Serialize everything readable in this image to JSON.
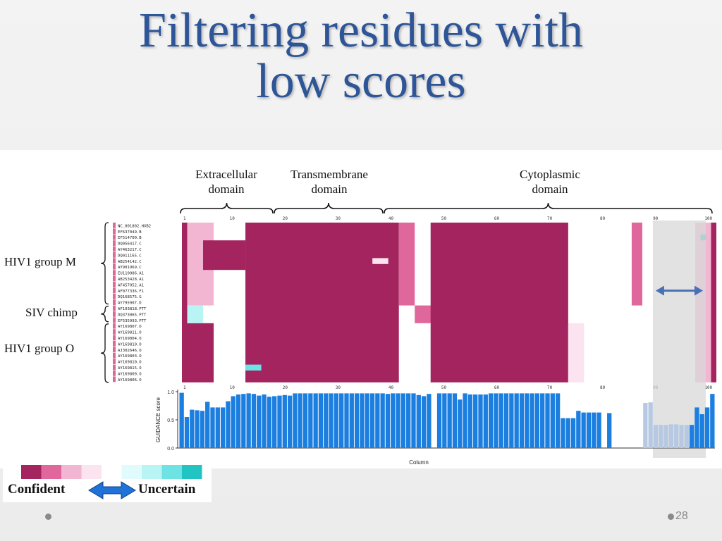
{
  "slide": {
    "title_line1": "Filtering residues with",
    "title_line2": "low scores",
    "page_number": "28"
  },
  "domains": [
    {
      "line1": "Extracellular",
      "line2": "domain"
    },
    {
      "line1": "Transmembrane",
      "line2": "domain"
    },
    {
      "line1": "Cytoplasmic",
      "line2": "domain"
    }
  ],
  "groups": [
    "HIV1 group M",
    "SIV chimp",
    "HIV1 group O"
  ],
  "sequences": [
    "NC_001802.HXB2",
    "EF637049.B",
    "EF514700.B",
    "DQ056417.C",
    "AY463217.C",
    "DQ011165.C",
    "AB254142.C",
    "AY901969.C",
    "EU110086.A1",
    "AB253428.A1",
    "AF457052.A1",
    "AF077336.F1",
    "DQ168575.G",
    "AY795907.D",
    "AF103818.PTT",
    "DQ373065.PTT",
    "EF535993.PTT",
    "AY169807.O",
    "AY169811.O",
    "AY169804.O",
    "AY169810.O",
    "AJ302646.O",
    "AY169803.O",
    "AY169810.O",
    "AY169815.O",
    "AY169809.O",
    "AY169806.O"
  ],
  "alignment_ticks": [
    "1",
    "10",
    "20",
    "30",
    "40",
    "50",
    "60",
    "70",
    "80",
    "90",
    "100"
  ],
  "legend": {
    "confident": "Confident",
    "uncertain": "Uncertain",
    "colors": [
      "#a3245e",
      "#e0679b",
      "#f3b6d2",
      "#fbe3ef",
      "#ffffff",
      "#e0fbfb",
      "#b8f4f4",
      "#6ee3e3",
      "#22c3c3"
    ]
  },
  "chart_data": {
    "type": "bar",
    "ylabel": "GUIDANCE score",
    "xlabel": "Column",
    "ylim": [
      0,
      1.0
    ],
    "yticks": [
      "0.0",
      "0.5",
      "1.0"
    ],
    "filtered_columns": [
      89,
      98
    ],
    "values": [
      0.98,
      0.55,
      0.68,
      0.67,
      0.66,
      0.82,
      0.72,
      0.72,
      0.72,
      0.83,
      0.92,
      0.95,
      0.96,
      0.97,
      0.96,
      0.93,
      0.95,
      0.91,
      0.92,
      0.93,
      0.94,
      0.93,
      0.97,
      0.97,
      0.97,
      0.97,
      0.97,
      0.97,
      0.97,
      0.97,
      0.97,
      0.97,
      0.97,
      0.97,
      0.97,
      0.97,
      0.97,
      0.97,
      0.97,
      0.97,
      0.96,
      0.97,
      0.97,
      0.97,
      0.97,
      0.97,
      0.94,
      0.92,
      0.96,
      0.0,
      0.97,
      0.97,
      0.97,
      0.97,
      0.86,
      0.97,
      0.95,
      0.95,
      0.95,
      0.95,
      0.97,
      0.97,
      0.97,
      0.97,
      0.97,
      0.97,
      0.97,
      0.97,
      0.97,
      0.97,
      0.97,
      0.97,
      0.97,
      0.97,
      0.53,
      0.53,
      0.53,
      0.66,
      0.63,
      0.63,
      0.63,
      0.63,
      0.0,
      0.62,
      0.0,
      0.0,
      0.0,
      0.0,
      0.0,
      0.0,
      0.8,
      0.81,
      0.41,
      0.41,
      0.41,
      0.42,
      0.42,
      0.41,
      0.41,
      0.41,
      0.72,
      0.6,
      0.72,
      0.96
    ]
  }
}
